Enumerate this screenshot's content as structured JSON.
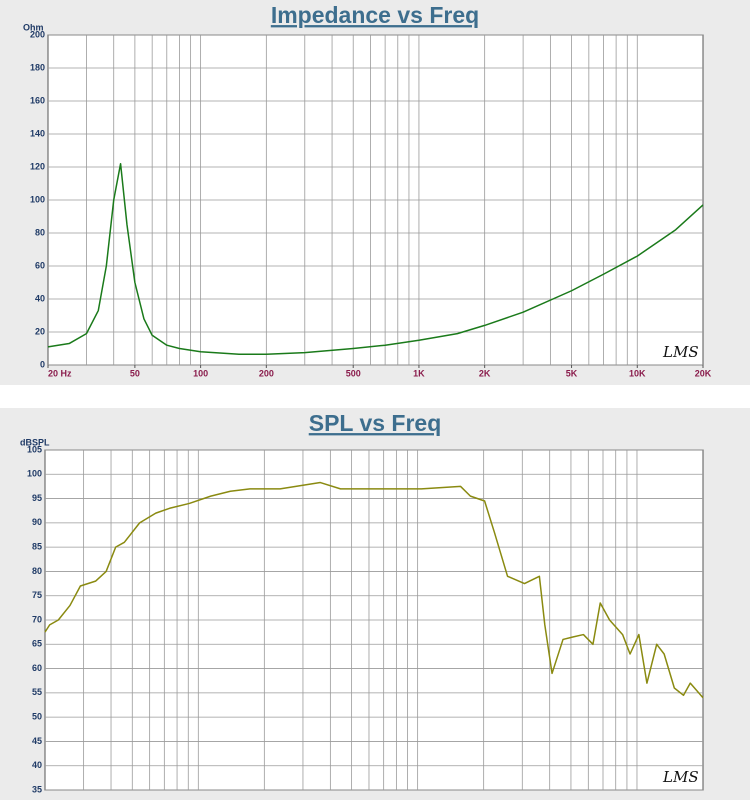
{
  "chart_data": [
    {
      "type": "line",
      "title": "Impedance vs Freq",
      "y_label": "Ohm",
      "watermark": "LMS",
      "log_x": true,
      "grid": true,
      "xlim": [
        20,
        20000
      ],
      "ylim": [
        0,
        200
      ],
      "xticks": [
        {
          "value": 20,
          "label": "20 Hz"
        },
        50,
        100,
        200,
        500,
        {
          "value": 1000,
          "label": "1K"
        },
        {
          "value": 2000,
          "label": "2K"
        },
        {
          "value": 5000,
          "label": "5K"
        },
        {
          "value": 10000,
          "label": "10K"
        },
        {
          "value": 20000,
          "label": "20K"
        }
      ],
      "yticks": [
        0,
        20,
        40,
        60,
        80,
        100,
        120,
        140,
        160,
        180,
        200
      ],
      "x": [
        20,
        25,
        30,
        34,
        37,
        40,
        43,
        46,
        50,
        55,
        60,
        70,
        80,
        100,
        150,
        200,
        300,
        500,
        700,
        1000,
        1500,
        2000,
        3000,
        5000,
        7000,
        10000,
        15000,
        20000
      ],
      "series": [
        {
          "name": "Impedance",
          "color": "#1a7a1a",
          "values": [
            11,
            13,
            19,
            33,
            60,
            100,
            122,
            85,
            50,
            28,
            18,
            12,
            10,
            8,
            6.5,
            6.5,
            7.5,
            10,
            12,
            15,
            19,
            24,
            32,
            45,
            55,
            66,
            82,
            97
          ]
        }
      ]
    },
    {
      "type": "line",
      "title": "SPL vs Freq",
      "y_label": "dBSPL",
      "watermark": "LMS",
      "log_x": true,
      "grid": true,
      "xlim": [
        20,
        20000
      ],
      "ylim": [
        35,
        105
      ],
      "yticks": [
        35,
        40,
        45,
        50,
        55,
        60,
        65,
        70,
        75,
        80,
        85,
        90,
        95,
        100,
        105
      ],
      "x": [
        20,
        21,
        23,
        26,
        29,
        34,
        38,
        42,
        46,
        54,
        64,
        74,
        91,
        114,
        140,
        172,
        236,
        360,
        445,
        675,
        1040,
        1570,
        1740,
        2020,
        2240,
        2570,
        3070,
        3590,
        3800,
        4100,
        4600,
        5100,
        5700,
        6300,
        6800,
        7500,
        8600,
        9300,
        10200,
        11100,
        12300,
        13300,
        14800,
        16300,
        17500,
        20000
      ],
      "series": [
        {
          "name": "SPL",
          "color": "#8a8a10",
          "values": [
            67.5,
            69,
            70,
            73,
            77,
            78,
            80,
            85,
            86,
            90,
            92,
            93,
            94,
            95.5,
            96.5,
            97,
            97,
            98.3,
            97,
            97,
            97,
            97.5,
            95.5,
            94.5,
            88,
            79,
            77.5,
            79,
            69,
            59,
            66,
            66.5,
            67,
            65,
            73.5,
            70,
            67,
            63,
            67,
            57,
            65,
            63,
            56,
            54.5,
            57,
            54
          ]
        }
      ]
    }
  ]
}
